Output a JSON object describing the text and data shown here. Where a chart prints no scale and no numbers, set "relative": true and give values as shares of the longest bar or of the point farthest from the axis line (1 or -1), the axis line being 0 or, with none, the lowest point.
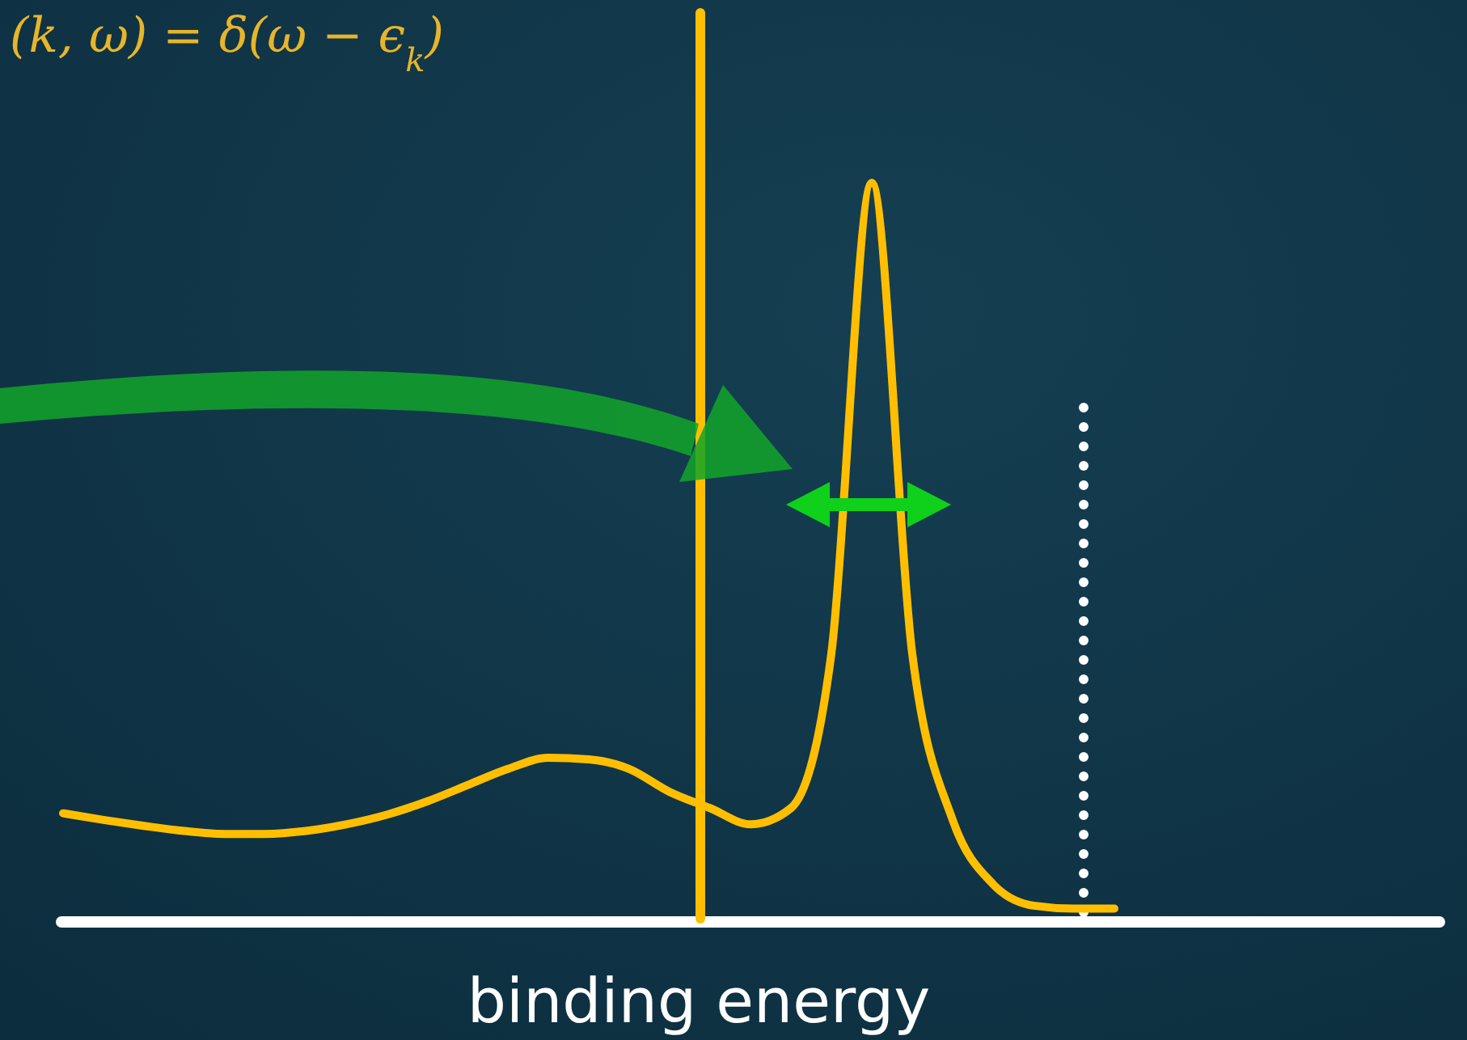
{
  "chart_data": {
    "type": "line",
    "relative": true,
    "xlabel": "binding energy",
    "annotations": [
      "(k, ω) = δ(ω − ϵ$_{k}$)"
    ],
    "categories": [
      null,
      null,
      null,
      null,
      null,
      null,
      null,
      null,
      null,
      null,
      null,
      null,
      null,
      null,
      null,
      null,
      null,
      null,
      null,
      null,
      null,
      null,
      null,
      null,
      null,
      null,
      null,
      null,
      null,
      null,
      null,
      null,
      null,
      null,
      null
    ],
    "series": [
      {
        "color": "#ffbf00",
        "values": [
          0.147,
          0.138,
          0.13,
          0.123,
          0.119,
          0.119,
          0.123,
          0.132,
          0.145,
          0.163,
          0.185,
          0.207,
          0.222,
          0.22,
          0.207,
          0.176,
          0.154,
          0.132,
          0.154,
          0.363,
          1,
          0.363,
          0.138,
          0.051,
          0.022,
          0.018,
          0.018,
          null,
          null,
          null,
          null,
          null,
          null,
          null,
          null
        ]
      }
    ],
    "marker": "none",
    "line_style": "solid"
  }
}
